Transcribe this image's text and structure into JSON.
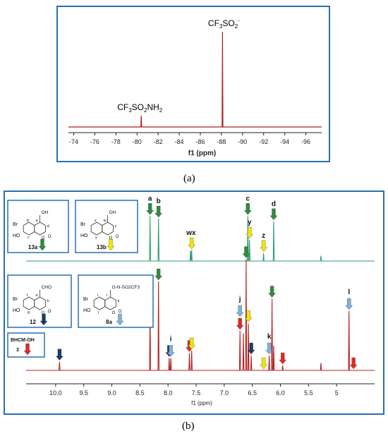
{
  "chart_data": [
    {
      "type": "line",
      "panel_label": "(a)",
      "xlabel": "f1 (ppm)",
      "xlim": [
        -73.5,
        -97.5
      ],
      "ticks": [
        -74,
        -76,
        -78,
        -80,
        -82,
        -84,
        -86,
        -88,
        -90,
        -92,
        -94,
        -96
      ],
      "tick_labels": [
        "-74",
        "-76",
        "-78",
        "-80",
        "-82",
        "-84",
        "-86",
        "-88",
        "-90",
        "-92",
        "-94",
        "-96"
      ],
      "line_color": "#b22222",
      "peaks": [
        {
          "x": -80.4,
          "height": 0.12,
          "label": "CF3SO2NH2",
          "label_base": "CF",
          "label_sub1": "3",
          "label_mid": "SO",
          "label_sub2": "2",
          "label_end": "NH",
          "label_sub3": "2"
        },
        {
          "x": -88.1,
          "height": 1.0,
          "label": "CF3SO2-",
          "label_base": "CF",
          "label_sub1": "3",
          "label_mid": "SO",
          "label_sub2": "2",
          "label_sup": "-"
        }
      ]
    },
    {
      "type": "line",
      "panel_label": "(b)",
      "xlabel": "f1 (ppm)",
      "xlim": [
        10.4,
        4.4
      ],
      "ticks": [
        10.0,
        9.5,
        9.0,
        8.5,
        8.0,
        7.5,
        7.0,
        6.5,
        6.0,
        5.5,
        5.0
      ],
      "tick_labels": [
        "10.0",
        "9.5",
        "9.0",
        "8.5",
        "8.0",
        "7.5",
        "7.0",
        "6.5",
        "6.0",
        "5.5",
        "5"
      ],
      "series": [
        {
          "color": "#2e9e6a",
          "peaks": [
            {
              "x": 8.32,
              "height": 0.85
            },
            {
              "x": 8.17,
              "height": 0.8
            },
            {
              "x": 7.6,
              "height": 0.2
            },
            {
              "x": 7.58,
              "height": 0.2
            },
            {
              "x": 6.58,
              "height": 0.85
            },
            {
              "x": 6.55,
              "height": 0.4
            },
            {
              "x": 6.3,
              "height": 0.15
            },
            {
              "x": 6.12,
              "height": 0.75
            },
            {
              "x": 5.28,
              "height": 0.1
            }
          ]
        },
        {
          "color": "#b22222",
          "peaks": [
            {
              "x": 9.93,
              "height": 0.07
            },
            {
              "x": 8.32,
              "height": 0.54
            },
            {
              "x": 8.17,
              "height": 0.72
            },
            {
              "x": 7.98,
              "height": 0.1
            },
            {
              "x": 7.95,
              "height": 0.1
            },
            {
              "x": 7.62,
              "height": 0.14
            },
            {
              "x": 7.58,
              "height": 0.16
            },
            {
              "x": 6.72,
              "height": 0.32
            },
            {
              "x": 6.66,
              "height": 0.3
            },
            {
              "x": 6.61,
              "height": 0.9
            },
            {
              "x": 6.57,
              "height": 0.38
            },
            {
              "x": 6.52,
              "height": 0.12
            },
            {
              "x": 6.2,
              "height": 0.12
            },
            {
              "x": 6.15,
              "height": 0.58
            },
            {
              "x": 6.12,
              "height": 0.2
            },
            {
              "x": 5.96,
              "height": 0.04
            },
            {
              "x": 5.28,
              "height": 0.06
            },
            {
              "x": 4.78,
              "height": 0.48
            }
          ]
        }
      ],
      "peak_labels_top": [
        {
          "text": "a",
          "x": 8.32
        },
        {
          "text": "b",
          "x": 8.17
        },
        {
          "text": "wx",
          "x": 7.59
        },
        {
          "text": "c",
          "x": 6.58
        },
        {
          "text": "y",
          "x": 6.55
        },
        {
          "text": "z",
          "x": 6.3
        },
        {
          "text": "d",
          "x": 6.12
        }
      ],
      "peak_labels_bottom": [
        {
          "text": "i",
          "x": 7.95
        },
        {
          "text": "j",
          "x": 6.72
        },
        {
          "text": "k",
          "x": 6.2
        },
        {
          "text": "l",
          "x": 4.78
        }
      ],
      "arrow_colors": {
        "green": "#2e8b3d",
        "yellow": "#f2e600",
        "navy": "#1b3a6b",
        "lightblue": "#7fb1dd",
        "red": "#e32626"
      },
      "arrows_top": [
        {
          "x": 8.32,
          "color": "green"
        },
        {
          "x": 8.17,
          "color": "green"
        },
        {
          "x": 7.58,
          "color": "yellow"
        },
        {
          "x": 6.58,
          "color": "green"
        },
        {
          "x": 6.55,
          "color": "yellow"
        },
        {
          "x": 6.3,
          "color": "yellow"
        },
        {
          "x": 6.12,
          "color": "green"
        }
      ],
      "arrows_bottom": [
        {
          "x": 9.93,
          "color": "navy"
        },
        {
          "x": 8.32,
          "color": "green"
        },
        {
          "x": 8.17,
          "color": "green"
        },
        {
          "x": 7.98,
          "color": "navy"
        },
        {
          "x": 7.95,
          "color": "lightblue"
        },
        {
          "x": 7.62,
          "color": "red"
        },
        {
          "x": 7.58,
          "color": "yellow"
        },
        {
          "x": 6.72,
          "color": "red"
        },
        {
          "x": 6.72,
          "color": "lightblue"
        },
        {
          "x": 6.61,
          "color": "green"
        },
        {
          "x": 6.57,
          "color": "yellow"
        },
        {
          "x": 6.52,
          "color": "navy"
        },
        {
          "x": 6.3,
          "color": "yellow"
        },
        {
          "x": 6.2,
          "color": "lightblue"
        },
        {
          "x": 6.15,
          "color": "green"
        },
        {
          "x": 5.96,
          "color": "red"
        },
        {
          "x": 4.78,
          "color": "lightblue"
        },
        {
          "x": 4.7,
          "color": "red"
        }
      ]
    }
  ],
  "structures": [
    {
      "compound": "13a",
      "arrow_color": "green",
      "group": "OH",
      "atoms": [
        "a",
        "b",
        "d",
        "c"
      ],
      "substituents": [
        "Br",
        "HO"
      ]
    },
    {
      "compound": "13b",
      "arrow_color": "yellow",
      "group": "OH",
      "atoms": [
        "w",
        "x",
        "z",
        "y"
      ],
      "substituents": [
        "Br",
        "HO"
      ]
    },
    {
      "compound": "12",
      "arrow_color": "navy",
      "group": "CHO",
      "atoms": [
        "e",
        "f",
        "h",
        "g"
      ],
      "substituents": [
        "Br",
        "HO"
      ]
    },
    {
      "compound": "8a",
      "arrow_color": "lightblue",
      "group": "O-N-SO2CF3",
      "atoms": [
        "i",
        "l",
        "k",
        "j"
      ],
      "substituents": [
        "Br",
        "HO"
      ]
    }
  ],
  "legend_bhcm": {
    "line1": "BHCM-OH",
    "line2": "3",
    "arrow_color": "red"
  },
  "structure_text": {
    "ring_o": "O",
    "ring_co": "O",
    "n": "N",
    "nh": "H",
    "dash": "−"
  }
}
